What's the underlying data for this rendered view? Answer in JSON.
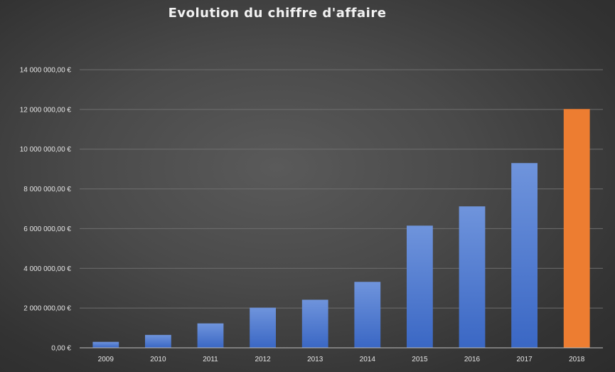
{
  "chart_data": {
    "type": "bar",
    "title": "Evolution du chiffre d'affaire",
    "categories": [
      "2009",
      "2010",
      "2011",
      "2012",
      "2013",
      "2014",
      "2015",
      "2016",
      "2017",
      "2018"
    ],
    "values": [
      300000,
      650000,
      1230000,
      2020000,
      2420000,
      3320000,
      6150000,
      7120000,
      9300000,
      12020000
    ],
    "ylim": [
      0,
      14000000
    ],
    "yticks": [
      0,
      2000000,
      4000000,
      6000000,
      8000000,
      10000000,
      12000000,
      14000000
    ],
    "ytick_labels": [
      "0,00 €",
      "2 000 000,00 €",
      "4 000 000,00 €",
      "6 000 000,00 €",
      "8 000 000,00 €",
      "10 000 000,00 €",
      "12 000 000,00 €",
      "14 000 000,00 €"
    ],
    "xlabel": "",
    "ylabel": "",
    "grid": true,
    "legend": "none",
    "colors": {
      "bar_top": "#6f94dc",
      "bar_bottom": "#3a67c4",
      "highlight": "#ed7d31",
      "highlight_category": "2018",
      "grid": "#6e6e6e",
      "axis": "#bfbfbf"
    }
  }
}
